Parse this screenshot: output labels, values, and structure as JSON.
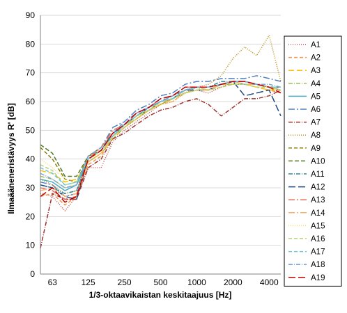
{
  "chart_data": {
    "type": "line",
    "title": "",
    "xlabel": "1/3-oktaavikaistan keskitaajuus [Hz]",
    "ylabel": "Ilmaääneneristävyys R' [dB]",
    "ylim": [
      0,
      90
    ],
    "yticks": [
      0,
      10,
      20,
      30,
      40,
      50,
      60,
      70,
      80,
      90
    ],
    "x": [
      50,
      63,
      80,
      100,
      125,
      160,
      200,
      250,
      315,
      400,
      500,
      630,
      800,
      1000,
      1250,
      1600,
      2000,
      2500,
      3150,
      4000,
      5000
    ],
    "xticks": [
      63,
      125,
      250,
      500,
      1000,
      2000,
      4000
    ],
    "xtick_labels": [
      "63",
      "125",
      "250",
      "500",
      "1000",
      "2000",
      "4000"
    ],
    "xscale": "log",
    "grid": "horizontal",
    "legend_position": "right",
    "series": [
      {
        "name": "A1",
        "color": "#c0504d",
        "dash": "1,2",
        "values": [
          28,
          27,
          22,
          27,
          37,
          37,
          46,
          50,
          53,
          56,
          59,
          60,
          63,
          64,
          63,
          65,
          67,
          66,
          66,
          65,
          64
        ]
      },
      {
        "name": "A2",
        "color": "#f79646",
        "dash": "5,3",
        "values": [
          27,
          28,
          24,
          27,
          38,
          41,
          48,
          51,
          54,
          57,
          59,
          60,
          63,
          64,
          64,
          65,
          66,
          66,
          65,
          64,
          63
        ]
      },
      {
        "name": "A3",
        "color": "#ffc000",
        "dash": "8,4",
        "values": [
          36,
          35,
          32,
          33,
          39,
          42,
          47,
          51,
          54,
          57,
          59,
          61,
          63,
          64,
          64,
          66,
          66,
          66,
          65,
          64,
          64
        ]
      },
      {
        "name": "A4",
        "color": "#9bbb59",
        "dash": "6,2,1,2",
        "values": [
          34,
          33,
          30,
          31,
          39,
          42,
          47,
          51,
          54,
          57,
          59,
          61,
          63,
          64,
          64,
          66,
          66,
          66,
          66,
          65,
          64
        ]
      },
      {
        "name": "A5",
        "color": "#4bacc6",
        "dash": "",
        "values": [
          33,
          32,
          29,
          31,
          40,
          43,
          48,
          52,
          55,
          58,
          60,
          61,
          64,
          65,
          65,
          66,
          67,
          66,
          66,
          65,
          65
        ]
      },
      {
        "name": "A6",
        "color": "#4f81bd",
        "dash": "9,3,2,3",
        "values": [
          32,
          31,
          27,
          28,
          41,
          44,
          51,
          53,
          57,
          59,
          62,
          63,
          66,
          67,
          67,
          68,
          68,
          68,
          69,
          68,
          67
        ]
      },
      {
        "name": "A7",
        "color": "#a0322d",
        "dash": "6,2,1,2",
        "values": [
          9,
          28,
          26,
          26,
          37,
          40,
          47,
          49,
          52,
          55,
          57,
          58,
          60,
          61,
          59,
          55,
          58,
          61,
          61,
          62,
          64
        ]
      },
      {
        "name": "A8",
        "color": "#b8860b",
        "dash": "1,2",
        "values": [
          33,
          31,
          28,
          29,
          40,
          43,
          48,
          51,
          54,
          57,
          59,
          61,
          63,
          65,
          66,
          69,
          75,
          79,
          76,
          83,
          67
        ]
      },
      {
        "name": "A9",
        "color": "#8b7a00",
        "dash": "5,3",
        "values": [
          44,
          40,
          33,
          32,
          41,
          44,
          49,
          52,
          55,
          57,
          60,
          61,
          64,
          65,
          64,
          66,
          67,
          67,
          66,
          65,
          65
        ]
      },
      {
        "name": "A10",
        "color": "#4f7a28",
        "dash": "6,3",
        "values": [
          45,
          42,
          34,
          34,
          41,
          43,
          48,
          52,
          55,
          57,
          60,
          61,
          64,
          65,
          65,
          66,
          67,
          67,
          66,
          65,
          65
        ]
      },
      {
        "name": "A11",
        "color": "#31859c",
        "dash": "6,2,1,2",
        "values": [
          31,
          30,
          28,
          29,
          40,
          43,
          48,
          52,
          55,
          58,
          60,
          62,
          64,
          65,
          65,
          67,
          67,
          67,
          66,
          65,
          64
        ]
      },
      {
        "name": "A12",
        "color": "#1f497d",
        "dash": "10,4",
        "values": [
          31,
          30,
          27,
          26,
          40,
          43,
          49,
          52,
          55,
          58,
          60,
          61,
          64,
          64,
          64,
          66,
          67,
          62,
          63,
          64,
          55
        ]
      },
      {
        "name": "A13",
        "color": "#e46c5a",
        "dash": "9,3,2,3",
        "values": [
          30,
          29,
          26,
          27,
          40,
          44,
          50,
          52,
          56,
          58,
          61,
          62,
          65,
          65,
          65,
          66,
          67,
          67,
          66,
          65,
          64
        ]
      },
      {
        "name": "A14",
        "color": "#fab26a",
        "dash": "9,3,2,3",
        "values": [
          29,
          30,
          27,
          28,
          39,
          42,
          48,
          51,
          55,
          57,
          60,
          61,
          64,
          65,
          64,
          66,
          67,
          66,
          66,
          65,
          64
        ]
      },
      {
        "name": "A15",
        "color": "#ffd966",
        "dash": "1,2",
        "values": [
          40,
          37,
          33,
          32,
          40,
          42,
          48,
          51,
          54,
          57,
          59,
          60,
          63,
          64,
          64,
          65,
          66,
          66,
          65,
          65,
          64
        ]
      },
      {
        "name": "A16",
        "color": "#b3d17a",
        "dash": "5,3",
        "values": [
          38,
          36,
          31,
          32,
          40,
          43,
          48,
          51,
          55,
          57,
          60,
          61,
          63,
          64,
          64,
          65,
          66,
          66,
          65,
          65,
          64
        ]
      },
      {
        "name": "A17",
        "color": "#6fc6dc",
        "dash": "5,3",
        "values": [
          37,
          35,
          31,
          32,
          40,
          43,
          48,
          52,
          55,
          58,
          60,
          61,
          64,
          65,
          65,
          66,
          67,
          67,
          66,
          65,
          65
        ]
      },
      {
        "name": "A18",
        "color": "#7aa6d6",
        "dash": "6,2,1,2",
        "values": [
          35,
          33,
          30,
          31,
          41,
          44,
          49,
          53,
          56,
          58,
          60,
          62,
          64,
          65,
          65,
          66,
          67,
          67,
          66,
          66,
          65
        ]
      },
      {
        "name": "A19",
        "color": "#c00000",
        "dash": "10,4",
        "values": [
          27,
          30,
          25,
          27,
          40,
          43,
          49,
          52,
          56,
          58,
          61,
          62,
          65,
          65,
          65,
          66,
          67,
          67,
          66,
          65,
          63
        ]
      }
    ]
  }
}
